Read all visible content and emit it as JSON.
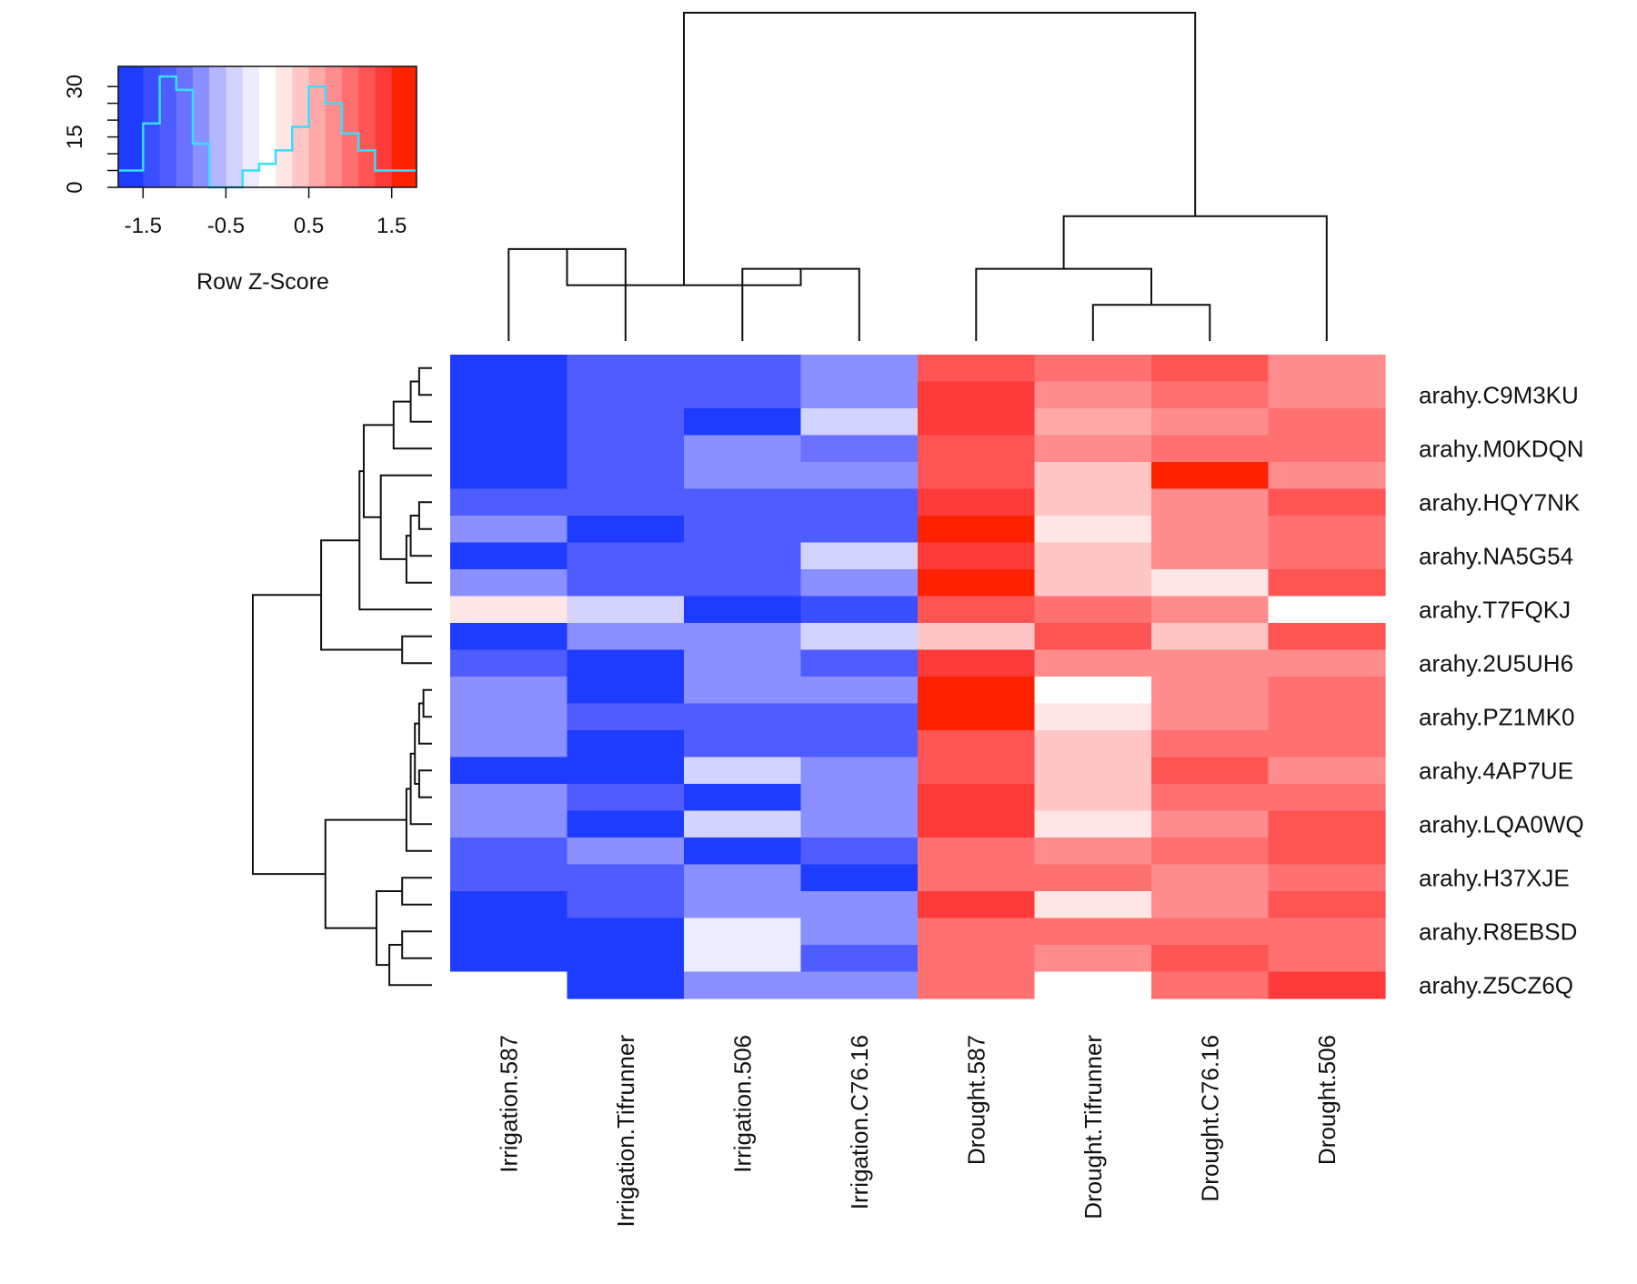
{
  "chart_data": {
    "type": "heatmap",
    "value_label": "Row Z-Score",
    "columns": [
      "Irrigation.587",
      "Irrigation.Tifrunner",
      "Irrigation.506",
      "Irrigation.C76.16",
      "Drought.587",
      "Drought.Tifrunner",
      "Drought.C76.16",
      "Drought.506"
    ],
    "row_labels": [
      "",
      "arahy.C9M3KU",
      "",
      "arahy.M0KDQN",
      "",
      "arahy.HQY7NK",
      "",
      "arahy.NA5G54",
      "",
      "arahy.T7FQKJ",
      "",
      "arahy.2U5UH6",
      "",
      "arahy.PZ1MK0",
      "",
      "arahy.4AP7UE",
      "",
      "arahy.LQA0WQ",
      "",
      "arahy.H37XJE",
      "",
      "arahy.R8EBSD",
      "",
      "arahy.Z5CZ6Q"
    ],
    "values": [
      [
        -1.5,
        -1.1,
        -1.1,
        -0.7,
        1.3,
        1.0,
        1.2,
        0.8
      ],
      [
        -1.7,
        -1.1,
        -1.1,
        -0.7,
        1.5,
        0.8,
        1.1,
        0.8
      ],
      [
        -1.5,
        -1.1,
        -1.5,
        -0.4,
        1.5,
        0.6,
        0.9,
        1.0
      ],
      [
        -1.5,
        -1.1,
        -0.7,
        -1.0,
        1.3,
        0.8,
        1.1,
        1.0
      ],
      [
        -1.7,
        -1.1,
        -0.7,
        -0.7,
        1.3,
        0.5,
        1.6,
        0.8
      ],
      [
        -1.1,
        -1.1,
        -1.1,
        -1.1,
        1.5,
        0.5,
        0.8,
        1.3
      ],
      [
        -0.7,
        -1.5,
        -1.1,
        -1.1,
        1.7,
        0.3,
        0.8,
        1.1
      ],
      [
        -1.5,
        -1.1,
        -1.1,
        -0.4,
        1.5,
        0.5,
        0.8,
        1.1
      ],
      [
        -0.7,
        -1.1,
        -1.1,
        -0.7,
        1.7,
        0.5,
        0.2,
        1.3
      ],
      [
        0.2,
        -0.4,
        -1.9,
        -1.3,
        1.3,
        1.1,
        0.8,
        0.0
      ],
      [
        -1.9,
        -0.7,
        -0.7,
        -0.4,
        0.5,
        1.3,
        0.5,
        1.3
      ],
      [
        -1.1,
        -1.5,
        -0.7,
        -1.1,
        1.5,
        0.8,
        0.8,
        0.8
      ],
      [
        -0.7,
        -1.5,
        -0.7,
        -0.7,
        1.7,
        0.0,
        0.8,
        1.0
      ],
      [
        -0.7,
        -1.1,
        -1.1,
        -1.1,
        1.7,
        0.2,
        0.8,
        1.0
      ],
      [
        -0.7,
        -1.5,
        -1.1,
        -1.1,
        1.3,
        0.5,
        1.0,
        1.0
      ],
      [
        -1.5,
        -1.5,
        -0.4,
        -0.7,
        1.3,
        0.5,
        1.3,
        0.8
      ],
      [
        -0.7,
        -1.1,
        -1.5,
        -0.7,
        1.5,
        0.5,
        1.0,
        1.1
      ],
      [
        -0.7,
        -1.9,
        -0.4,
        -0.7,
        1.5,
        0.3,
        0.8,
        1.3
      ],
      [
        -1.1,
        -0.7,
        -1.5,
        -1.1,
        1.0,
        0.8,
        1.0,
        1.3
      ],
      [
        -1.1,
        -1.1,
        -0.7,
        -1.5,
        1.0,
        1.0,
        0.8,
        1.1
      ],
      [
        -1.7,
        -1.1,
        -0.7,
        -0.7,
        1.5,
        0.3,
        0.8,
        1.3
      ],
      [
        -1.7,
        -1.5,
        -0.2,
        -0.7,
        1.0,
        1.0,
        1.0,
        1.0
      ],
      [
        -1.5,
        -1.5,
        -0.2,
        -1.1,
        1.0,
        0.8,
        1.3,
        1.0
      ],
      [
        null,
        -1.9,
        -0.7,
        -0.7,
        1.0,
        null,
        1.1,
        1.5
      ]
    ],
    "color_scale": {
      "domain": [
        -1.8,
        1.8
      ],
      "breaks": [
        -1.8,
        -1.5,
        -1.3,
        -1.1,
        -0.9,
        -0.7,
        -0.5,
        -0.3,
        -0.1,
        0.1,
        0.3,
        0.5,
        0.7,
        0.9,
        1.1,
        1.3,
        1.5,
        1.8
      ],
      "colors": [
        "#1e3cff",
        "#3a4fff",
        "#4f5cff",
        "#6a72ff",
        "#8a90ff",
        "#b3b6ff",
        "#d2d3ff",
        "#ececff",
        "#ffffff",
        "#ffe6e6",
        "#ffc6c6",
        "#ffa8a8",
        "#ff8c8c",
        "#ff7070",
        "#ff5454",
        "#ff3a3a",
        "#ff2200"
      ]
    },
    "color_key": {
      "title": "Row Z-Score",
      "x_ticks": [
        -1.5,
        -0.5,
        0.5,
        1.5
      ],
      "x_tick_labels": [
        "-1.5",
        "-0.5",
        "0.5",
        "1.5"
      ],
      "y_ticks": [
        0,
        15,
        30
      ],
      "y_tick_labels": [
        "0",
        "15",
        "30"
      ],
      "ylim": [
        0,
        36
      ],
      "histogram_color": "#33e0ff",
      "histogram_bins": [
        -1.8,
        -1.5,
        -1.3,
        -1.1,
        -0.9,
        -0.7,
        -0.5,
        -0.3,
        -0.1,
        0.1,
        0.3,
        0.5,
        0.7,
        0.9,
        1.1,
        1.3,
        1.5,
        1.8
      ],
      "histogram_counts": [
        5,
        19,
        33,
        29,
        13,
        0,
        0,
        5,
        7,
        11,
        18,
        30,
        25,
        16,
        11,
        5,
        5
      ]
    },
    "column_dendrogram": [
      [
        0,
        1,
        0.28
      ],
      [
        2,
        3,
        0.22
      ],
      [
        8,
        9,
        0.17
      ],
      [
        5,
        6,
        0.11
      ],
      [
        11,
        4,
        0.22
      ],
      [
        12,
        7,
        0.38
      ],
      [
        10,
        13,
        1.0
      ]
    ],
    "row_dendrogram": [
      [
        0,
        1,
        0.03
      ],
      [
        24,
        2,
        0.05
      ],
      [
        25,
        3,
        0.09
      ],
      [
        5,
        6,
        0.03
      ],
      [
        27,
        7,
        0.05
      ],
      [
        28,
        8,
        0.06
      ],
      [
        4,
        29,
        0.12
      ],
      [
        26,
        30,
        0.16
      ],
      [
        31,
        9,
        0.17
      ],
      [
        10,
        11,
        0.07
      ],
      [
        32,
        33,
        0.26
      ],
      [
        12,
        13,
        0.02
      ],
      [
        35,
        14,
        0.03
      ],
      [
        15,
        16,
        0.03
      ],
      [
        36,
        37,
        0.04
      ],
      [
        38,
        17,
        0.05
      ],
      [
        39,
        18,
        0.06
      ],
      [
        19,
        20,
        0.07
      ],
      [
        21,
        22,
        0.07
      ],
      [
        42,
        23,
        0.1
      ],
      [
        41,
        43,
        0.13
      ],
      [
        40,
        44,
        0.25
      ],
      [
        34,
        45,
        0.42
      ]
    ]
  }
}
